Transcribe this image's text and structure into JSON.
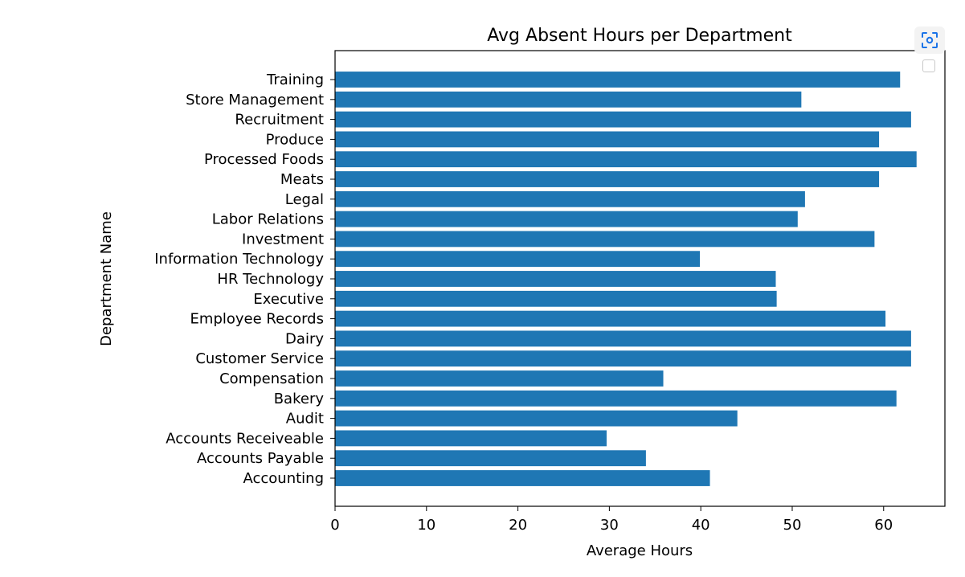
{
  "chart_data": {
    "type": "bar",
    "orientation": "horizontal",
    "title": "Avg Absent Hours per Department",
    "xlabel": "Average Hours",
    "ylabel": "Department Name",
    "xlim": [
      0,
      66.7
    ],
    "xticks": [
      0,
      10,
      20,
      30,
      40,
      50,
      60
    ],
    "grid": false,
    "bar_color": "#1f77b4",
    "categories": [
      "Accounting",
      "Accounts Payable",
      "Accounts Receiveable",
      "Audit",
      "Bakery",
      "Compensation",
      "Customer Service",
      "Dairy",
      "Employee Records",
      "Executive",
      "HR Technology",
      "Information Technology",
      "Investment",
      "Labor Relations",
      "Legal",
      "Meats",
      "Processed Foods",
      "Produce",
      "Recruitment",
      "Store Management",
      "Training"
    ],
    "values": [
      41.0,
      34.0,
      29.7,
      44.0,
      61.4,
      35.9,
      63.0,
      63.0,
      60.2,
      48.3,
      48.2,
      39.9,
      59.0,
      50.6,
      51.4,
      59.5,
      63.6,
      59.5,
      63.0,
      51.0,
      61.8
    ]
  },
  "toolbar": {
    "inspect_icon": "focus-scan-icon",
    "accent": "#1a73e8"
  }
}
